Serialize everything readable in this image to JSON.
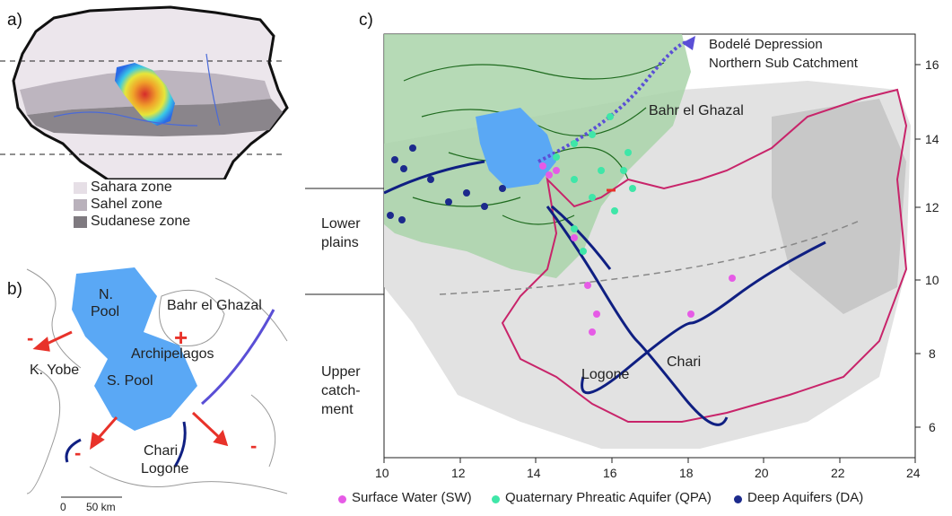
{
  "panels": {
    "a": "a)",
    "b": "b)",
    "c": "c)"
  },
  "panel_a": {
    "legend": [
      {
        "label": "Sahara zone",
        "color": "#e6dfe6"
      },
      {
        "label": "Sahel zone",
        "color": "#b9b1bb"
      },
      {
        "label": "Sudanese zone",
        "color": "#7f7a80"
      }
    ]
  },
  "panel_b": {
    "labels": {
      "bahr": "Bahr el Ghazal",
      "npool_1": "N.",
      "npool_2": "Pool",
      "archipelagos": "Archipelagos",
      "kyobe": "K. Yobe",
      "spool": "S. Pool",
      "chari": "Chari",
      "logone": "Logone",
      "plus": "+",
      "minus": "-"
    },
    "scale": {
      "zero": "0",
      "km": "50 km"
    }
  },
  "panel_c": {
    "labels": {
      "bodele_1": "Bodelé Depression",
      "bodele_2": "Northern Sub Catchment",
      "bahr": "Bahr el Ghazal",
      "logone": "Logone",
      "chari": "Chari",
      "minus": "-"
    },
    "side_labels": {
      "lower_1": "Lower",
      "lower_2": "plains",
      "upper_1": "Upper",
      "upper_2": "catch-",
      "upper_3": "ment"
    },
    "x_ticks": [
      "10",
      "12",
      "14",
      "16",
      "18",
      "20",
      "22",
      "24"
    ],
    "y_ticks": [
      "16",
      "14",
      "12",
      "10",
      "8",
      "6"
    ],
    "legend": [
      {
        "label": "Surface Water (SW)",
        "color": "#e65be6"
      },
      {
        "label": "Quaternary Phreatic Aquifer (QPA)",
        "color": "#3fe6a8"
      },
      {
        "label": "Deep Aquifers (DA)",
        "color": "#1c2a8c"
      }
    ]
  },
  "colors": {
    "lake": "#5aa8f5",
    "river": "#0f1f82",
    "basin": "#c8246a",
    "green": "#8dc48d",
    "arrow": "#e8322a",
    "gradient_arrow": "#5a4fd6"
  }
}
